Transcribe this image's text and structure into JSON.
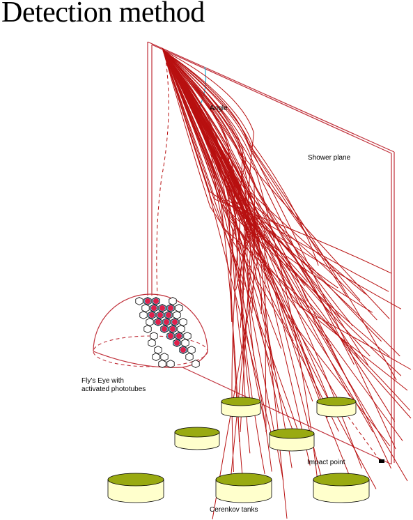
{
  "title": "Detection method",
  "labels": {
    "angle": "Angle",
    "shower_plane": "Shower plane",
    "flys_eye_line1": "Fly’s Eye with",
    "flys_eye_line2": "activated phototubes",
    "impact_point": "Impact point",
    "cerenkov_tanks": "Cerenkov tanks"
  },
  "colors": {
    "shower": "#b81010",
    "plane": "#c0303a",
    "angle_arc": "#33bbdd",
    "tank_top": "#99aa11",
    "tank_body": "#ffffcc",
    "tube_active": "#e0204a",
    "tube_ring": "#6fc8e8"
  },
  "icons": [
    "flys-eye-dome",
    "cerenkov-tank",
    "phototube"
  ]
}
